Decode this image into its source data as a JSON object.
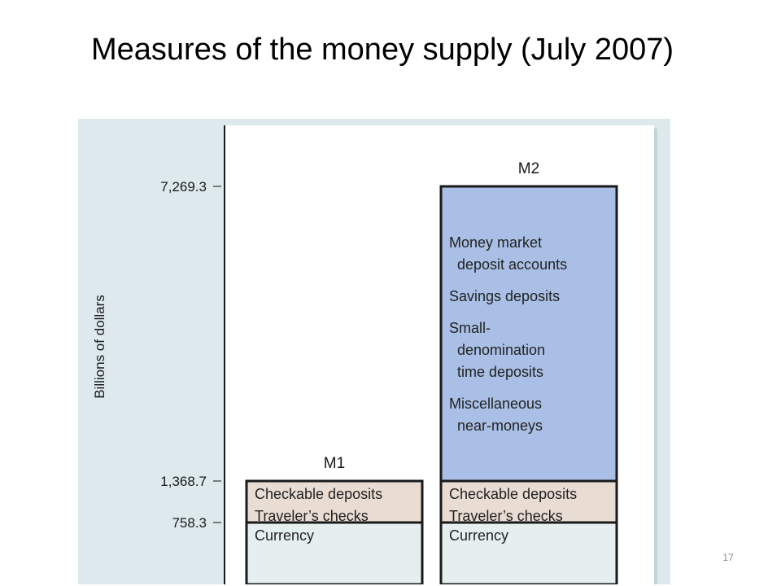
{
  "slide": {
    "title": "Measures of the money supply (July 2007)",
    "page_number": "17"
  },
  "colors": {
    "panel_background": "#dde9ec",
    "plot_background": "#ffffff",
    "m2_component": "#a9bfe5",
    "checkable_component": "#e9dcd3",
    "currency_component": "#e6efef",
    "outline": "#1a1a1a"
  },
  "chart_data": {
    "type": "bar",
    "stacked": true,
    "title": "",
    "ylabel": "Billions of dollars",
    "xlabel": "",
    "ylim": [
      0,
      8000
    ],
    "grid": false,
    "legend": "none",
    "y_ticks": [
      {
        "value": 758.3,
        "label": "758.3"
      },
      {
        "value": 1368.7,
        "label": "1,368.7"
      },
      {
        "value": 7269.3,
        "label": "7,269.3"
      }
    ],
    "categories": [
      "M1",
      "M2"
    ],
    "series": [
      {
        "name": "Currency",
        "label_lines": [
          "Currency"
        ],
        "color": "#e6efef",
        "values": [
          758.3,
          758.3
        ]
      },
      {
        "name": "Checkable deposits Traveler’s checks",
        "label_lines": [
          "Checkable deposits",
          "Traveler’s checks"
        ],
        "color": "#e9dcd3",
        "values": [
          610.4,
          610.4
        ]
      },
      {
        "name": "Money market deposit accounts, Savings deposits, Small-denomination time deposits, Miscellaneous near-moneys",
        "label_lines": [
          "Money market",
          " deposit accounts",
          "Savings deposits",
          "Small-",
          " denomination",
          " time deposits",
          "Miscellaneous",
          " near-moneys"
        ],
        "color": "#a9bfe5",
        "values": [
          0,
          5900.6
        ]
      }
    ],
    "totals": [
      1368.7,
      7269.3
    ]
  }
}
